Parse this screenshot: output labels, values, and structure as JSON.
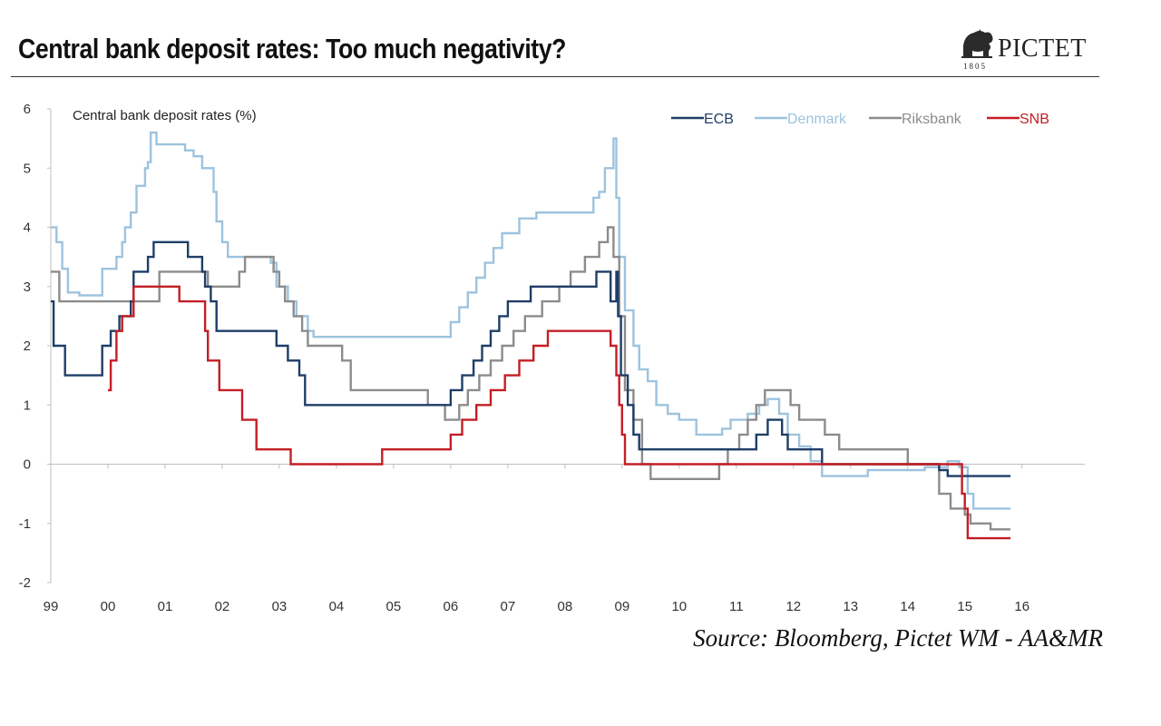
{
  "page": {
    "title": "Central bank deposit rates: Too much negativity?",
    "logo_text": "PICTET",
    "logo_year": "1805",
    "source": "Source: Bloomberg, Pictet WM - AA&MR"
  },
  "chart_data": {
    "type": "line",
    "title": "Central bank deposit rates (%)",
    "xlabel": "",
    "ylabel": "",
    "xlim": [
      1999,
      2017.1
    ],
    "ylim": [
      -2,
      6
    ],
    "yticks": [
      6,
      5,
      4,
      3,
      2,
      1,
      0,
      -1,
      -2
    ],
    "xticks": [
      {
        "value": 1999,
        "label": "99"
      },
      {
        "value": 2000,
        "label": "00"
      },
      {
        "value": 2001,
        "label": "01"
      },
      {
        "value": 2002,
        "label": "02"
      },
      {
        "value": 2003,
        "label": "03"
      },
      {
        "value": 2004,
        "label": "04"
      },
      {
        "value": 2005,
        "label": "05"
      },
      {
        "value": 2006,
        "label": "06"
      },
      {
        "value": 2007,
        "label": "07"
      },
      {
        "value": 2008,
        "label": "08"
      },
      {
        "value": 2009,
        "label": "09"
      },
      {
        "value": 2010,
        "label": "10"
      },
      {
        "value": 2011,
        "label": "11"
      },
      {
        "value": 2012,
        "label": "12"
      },
      {
        "value": 2013,
        "label": "13"
      },
      {
        "value": 2014,
        "label": "14"
      },
      {
        "value": 2015,
        "label": "15"
      },
      {
        "value": 2016,
        "label": "16"
      }
    ],
    "grid": false,
    "legend_position": "top-right",
    "series": [
      {
        "name": "Denmark",
        "color": "#9dc3de",
        "points": [
          [
            1999.0,
            4.0
          ],
          [
            1999.1,
            3.75
          ],
          [
            1999.2,
            3.3
          ],
          [
            1999.3,
            2.9
          ],
          [
            1999.5,
            2.85
          ],
          [
            1999.85,
            2.85
          ],
          [
            1999.9,
            3.3
          ],
          [
            2000.1,
            3.3
          ],
          [
            2000.15,
            3.5
          ],
          [
            2000.25,
            3.75
          ],
          [
            2000.3,
            4.0
          ],
          [
            2000.4,
            4.25
          ],
          [
            2000.5,
            4.7
          ],
          [
            2000.65,
            5.0
          ],
          [
            2000.7,
            5.1
          ],
          [
            2000.75,
            5.6
          ],
          [
            2000.85,
            5.4
          ],
          [
            2001.35,
            5.3
          ],
          [
            2001.5,
            5.2
          ],
          [
            2001.65,
            5.0
          ],
          [
            2001.85,
            4.6
          ],
          [
            2001.9,
            4.1
          ],
          [
            2002.0,
            3.75
          ],
          [
            2002.1,
            3.5
          ],
          [
            2002.4,
            3.5
          ],
          [
            2002.7,
            3.5
          ],
          [
            2002.85,
            3.4
          ],
          [
            2002.95,
            3.0
          ],
          [
            2003.15,
            2.75
          ],
          [
            2003.3,
            2.5
          ],
          [
            2003.5,
            2.25
          ],
          [
            2003.6,
            2.15
          ],
          [
            2005.9,
            2.15
          ],
          [
            2006.0,
            2.4
          ],
          [
            2006.15,
            2.65
          ],
          [
            2006.3,
            2.9
          ],
          [
            2006.45,
            3.15
          ],
          [
            2006.6,
            3.4
          ],
          [
            2006.75,
            3.65
          ],
          [
            2006.9,
            3.9
          ],
          [
            2007.1,
            3.9
          ],
          [
            2007.2,
            4.15
          ],
          [
            2007.5,
            4.25
          ],
          [
            2008.4,
            4.25
          ],
          [
            2008.5,
            4.5
          ],
          [
            2008.6,
            4.6
          ],
          [
            2008.7,
            5.0
          ],
          [
            2008.85,
            5.5
          ],
          [
            2008.9,
            4.5
          ],
          [
            2008.95,
            3.5
          ],
          [
            2009.05,
            2.6
          ],
          [
            2009.2,
            2.0
          ],
          [
            2009.3,
            1.6
          ],
          [
            2009.45,
            1.4
          ],
          [
            2009.6,
            1.0
          ],
          [
            2009.8,
            0.85
          ],
          [
            2010.0,
            0.75
          ],
          [
            2010.3,
            0.5
          ],
          [
            2010.6,
            0.5
          ],
          [
            2010.75,
            0.6
          ],
          [
            2010.9,
            0.75
          ],
          [
            2011.2,
            0.85
          ],
          [
            2011.4,
            1.0
          ],
          [
            2011.55,
            1.1
          ],
          [
            2011.75,
            0.85
          ],
          [
            2011.9,
            0.5
          ],
          [
            2012.1,
            0.3
          ],
          [
            2012.3,
            0.05
          ],
          [
            2012.5,
            -0.2
          ],
          [
            2013.3,
            -0.1
          ],
          [
            2014.3,
            -0.05
          ],
          [
            2014.7,
            0.05
          ],
          [
            2014.9,
            -0.05
          ],
          [
            2015.05,
            -0.5
          ],
          [
            2015.15,
            -0.75
          ],
          [
            2015.8,
            -0.75
          ]
        ]
      },
      {
        "name": "Riksbank",
        "color": "#8c8c8c",
        "points": [
          [
            1999.0,
            3.25
          ],
          [
            1999.15,
            2.75
          ],
          [
            2000.0,
            2.75
          ],
          [
            2000.6,
            2.75
          ],
          [
            2000.9,
            3.25
          ],
          [
            2001.5,
            3.25
          ],
          [
            2001.75,
            3.0
          ],
          [
            2002.1,
            3.0
          ],
          [
            2002.3,
            3.25
          ],
          [
            2002.4,
            3.5
          ],
          [
            2002.9,
            3.25
          ],
          [
            2003.0,
            3.0
          ],
          [
            2003.1,
            2.75
          ],
          [
            2003.25,
            2.5
          ],
          [
            2003.4,
            2.25
          ],
          [
            2003.5,
            2.0
          ],
          [
            2004.1,
            1.75
          ],
          [
            2004.25,
            1.25
          ],
          [
            2005.5,
            1.25
          ],
          [
            2005.6,
            1.0
          ],
          [
            2005.9,
            0.75
          ],
          [
            2006.15,
            1.0
          ],
          [
            2006.3,
            1.25
          ],
          [
            2006.5,
            1.5
          ],
          [
            2006.7,
            1.75
          ],
          [
            2006.9,
            2.0
          ],
          [
            2007.1,
            2.25
          ],
          [
            2007.3,
            2.5
          ],
          [
            2007.6,
            2.75
          ],
          [
            2007.9,
            3.0
          ],
          [
            2008.1,
            3.25
          ],
          [
            2008.35,
            3.5
          ],
          [
            2008.6,
            3.75
          ],
          [
            2008.75,
            4.0
          ],
          [
            2008.85,
            3.5
          ],
          [
            2008.95,
            2.5
          ],
          [
            2009.05,
            1.25
          ],
          [
            2009.2,
            0.75
          ],
          [
            2009.35,
            0.0
          ],
          [
            2009.5,
            -0.25
          ],
          [
            2010.0,
            -0.25
          ],
          [
            2010.65,
            -0.25
          ],
          [
            2010.7,
            0.0
          ],
          [
            2010.85,
            0.25
          ],
          [
            2011.05,
            0.5
          ],
          [
            2011.2,
            0.75
          ],
          [
            2011.35,
            1.0
          ],
          [
            2011.5,
            1.25
          ],
          [
            2011.75,
            1.25
          ],
          [
            2011.95,
            1.0
          ],
          [
            2012.1,
            0.75
          ],
          [
            2012.55,
            0.5
          ],
          [
            2012.8,
            0.25
          ],
          [
            2013.9,
            0.25
          ],
          [
            2014.0,
            0.0
          ],
          [
            2014.5,
            0.0
          ],
          [
            2014.55,
            -0.5
          ],
          [
            2014.75,
            -0.75
          ],
          [
            2015.0,
            -0.85
          ],
          [
            2015.1,
            -1.0
          ],
          [
            2015.45,
            -1.1
          ],
          [
            2015.8,
            -1.1
          ]
        ]
      },
      {
        "name": "ECB",
        "color": "#1f3e66",
        "points": [
          [
            1999.0,
            2.75
          ],
          [
            1999.05,
            2.0
          ],
          [
            1999.25,
            1.5
          ],
          [
            1999.85,
            1.5
          ],
          [
            1999.9,
            2.0
          ],
          [
            2000.05,
            2.25
          ],
          [
            2000.2,
            2.5
          ],
          [
            2000.4,
            2.75
          ],
          [
            2000.45,
            3.25
          ],
          [
            2000.7,
            3.5
          ],
          [
            2000.8,
            3.75
          ],
          [
            2001.35,
            3.75
          ],
          [
            2001.4,
            3.5
          ],
          [
            2001.65,
            3.25
          ],
          [
            2001.7,
            3.0
          ],
          [
            2001.8,
            2.75
          ],
          [
            2001.9,
            2.25
          ],
          [
            2002.9,
            2.25
          ],
          [
            2002.95,
            2.0
          ],
          [
            2003.15,
            1.75
          ],
          [
            2003.35,
            1.5
          ],
          [
            2003.45,
            1.0
          ],
          [
            2005.9,
            1.0
          ],
          [
            2006.0,
            1.25
          ],
          [
            2006.2,
            1.5
          ],
          [
            2006.4,
            1.75
          ],
          [
            2006.55,
            2.0
          ],
          [
            2006.7,
            2.25
          ],
          [
            2006.85,
            2.5
          ],
          [
            2007.0,
            2.75
          ],
          [
            2007.4,
            3.0
          ],
          [
            2008.5,
            3.0
          ],
          [
            2008.55,
            3.25
          ],
          [
            2008.75,
            3.25
          ],
          [
            2008.8,
            2.75
          ],
          [
            2008.9,
            3.25
          ],
          [
            2008.93,
            2.5
          ],
          [
            2008.98,
            1.5
          ],
          [
            2009.1,
            1.0
          ],
          [
            2009.2,
            0.5
          ],
          [
            2009.3,
            0.25
          ],
          [
            2010.0,
            0.25
          ],
          [
            2011.25,
            0.25
          ],
          [
            2011.35,
            0.5
          ],
          [
            2011.55,
            0.75
          ],
          [
            2011.8,
            0.5
          ],
          [
            2011.9,
            0.25
          ],
          [
            2012.5,
            0.0
          ],
          [
            2014.5,
            0.0
          ],
          [
            2014.55,
            -0.1
          ],
          [
            2014.7,
            -0.2
          ],
          [
            2015.8,
            -0.2
          ]
        ]
      },
      {
        "name": "SNB",
        "color": "#c41e25",
        "points": [
          [
            2000.0,
            1.25
          ],
          [
            2000.05,
            1.75
          ],
          [
            2000.15,
            2.25
          ],
          [
            2000.25,
            2.5
          ],
          [
            2000.45,
            3.0
          ],
          [
            2000.8,
            3.0
          ],
          [
            2001.25,
            2.75
          ],
          [
            2001.7,
            2.25
          ],
          [
            2001.75,
            1.75
          ],
          [
            2001.9,
            1.75
          ],
          [
            2001.95,
            1.25
          ],
          [
            2002.3,
            1.25
          ],
          [
            2002.35,
            0.75
          ],
          [
            2002.55,
            0.75
          ],
          [
            2002.6,
            0.25
          ],
          [
            2003.15,
            0.25
          ],
          [
            2003.2,
            0.0
          ],
          [
            2004.75,
            0.0
          ],
          [
            2004.8,
            0.25
          ],
          [
            2005.95,
            0.25
          ],
          [
            2006.0,
            0.5
          ],
          [
            2006.2,
            0.75
          ],
          [
            2006.45,
            1.0
          ],
          [
            2006.7,
            1.25
          ],
          [
            2006.95,
            1.5
          ],
          [
            2007.2,
            1.75
          ],
          [
            2007.45,
            2.0
          ],
          [
            2007.7,
            2.25
          ],
          [
            2008.7,
            2.25
          ],
          [
            2008.8,
            2.0
          ],
          [
            2008.9,
            1.5
          ],
          [
            2008.95,
            1.0
          ],
          [
            2009.0,
            0.5
          ],
          [
            2009.05,
            0.0
          ],
          [
            2010.0,
            0.0
          ],
          [
            2014.9,
            0.0
          ],
          [
            2014.95,
            -0.5
          ],
          [
            2015.0,
            -0.75
          ],
          [
            2015.05,
            -1.25
          ],
          [
            2015.8,
            -1.25
          ]
        ]
      }
    ],
    "legend": [
      {
        "name": "ECB",
        "color": "#1f3e66"
      },
      {
        "name": "Denmark",
        "color": "#9dc3de"
      },
      {
        "name": "Riksbank",
        "color": "#8c8c8c"
      },
      {
        "name": "SNB",
        "color": "#c41e25"
      }
    ]
  }
}
